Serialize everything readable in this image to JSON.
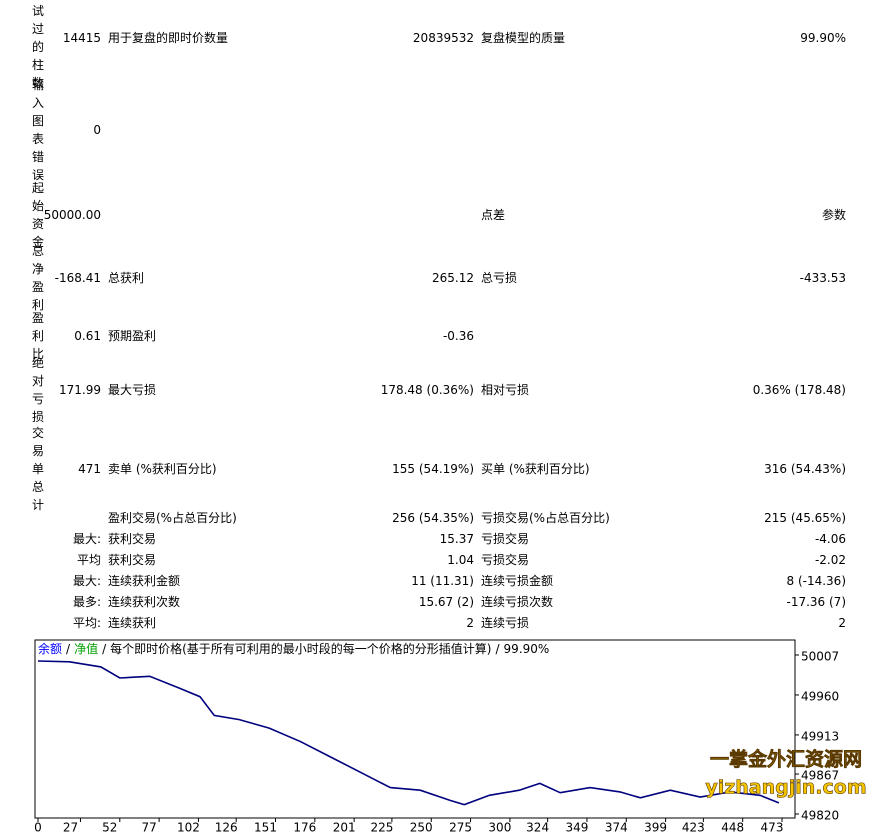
{
  "report": {
    "summary_rows": [
      {
        "label": "测试过的柱数",
        "value": "14415",
        "col2_label": "用于复盘的即时价数量",
        "col2_value": "20839532",
        "col3_label": "复盘模型的质量",
        "col3_value": "99.90%"
      },
      {
        "label": "输入图表错误",
        "value": "0"
      },
      {
        "label": "起始资金",
        "value": "50000.00",
        "col3_label": "点差",
        "col3_value": "参数"
      },
      {
        "label": "总净盈利",
        "value": "-168.41",
        "col2_label": "总获利",
        "col2_value": "265.12",
        "col3_label": "总亏损",
        "col3_value": "-433.53"
      },
      {
        "label": "盈利比",
        "value": "0.61",
        "col2_label": "预期盈利",
        "col2_value": "-0.36"
      },
      {
        "label": "绝对亏损",
        "value": "171.99",
        "col2_label": "最大亏损",
        "col2_value": "178.48 (0.36%)",
        "col3_label": "相对亏损",
        "col3_value": "0.36% (178.48)"
      },
      {
        "label": "交易单总计",
        "value": "471",
        "col2_label": "卖单 (%获利百分比)",
        "col2_value": "155 (54.19%)",
        "col3_label": "买单 (%获利百分比)",
        "col3_value": "316 (54.43%)"
      }
    ],
    "detail_rows": [
      {
        "col2_label": "盈利交易(%占总百分比)",
        "col2_value": "256 (54.35%)",
        "col3_label": "亏损交易(%占总百分比)",
        "col3_value": "215 (45.65%)"
      },
      {
        "label": "最大:",
        "col2_label": "获利交易",
        "col2_value": "15.37",
        "col3_label": "亏损交易",
        "col3_value": "-4.06"
      },
      {
        "label": "平均",
        "col2_label": "获利交易",
        "col2_value": "1.04",
        "col3_label": "亏损交易",
        "col3_value": "-2.02"
      },
      {
        "label": "最大:",
        "col2_label": "连续获利金额",
        "col2_value": "11 (11.31)",
        "col3_label": "连续亏损金额",
        "col3_value": "8 (-14.36)"
      },
      {
        "label": "最多:",
        "col2_label": "连续获利次数",
        "col2_value": "15.67 (2)",
        "col3_label": "连续亏损次数",
        "col3_value": "-17.36 (7)"
      },
      {
        "label": "平均:",
        "col2_label": "连续获利",
        "col2_value": "2",
        "col3_label": "连续亏损",
        "col3_value": "2"
      }
    ]
  },
  "chart_data": {
    "type": "line",
    "title_parts": [
      {
        "text": "余额",
        "color": "#0000ff"
      },
      {
        "text": "/"
      },
      {
        "text": "净值",
        "color": "#00a000"
      },
      {
        "text": "/"
      },
      {
        "text": "每个即时价格(基于所有可利用的最小时段的每一个价格的分形插值计算)"
      },
      {
        "text": "/"
      },
      {
        "text": "99.90%"
      }
    ],
    "x": [
      0,
      20,
      40,
      52,
      71,
      90,
      103,
      112,
      128,
      147,
      167,
      186,
      205,
      224,
      243,
      262,
      271,
      287,
      306,
      319,
      332,
      351,
      370,
      383,
      402,
      421,
      440,
      459,
      471
    ],
    "series": [
      {
        "name": "余额",
        "color": "#00007f",
        "values": [
          50000,
          49999,
          49993,
          49980,
          49982,
          49968,
          49958,
          49936,
          49931,
          49921,
          49905,
          49887,
          49869,
          49851,
          49848,
          49836,
          49831,
          49842,
          49848,
          49856,
          49845,
          49851,
          49846,
          49839,
          49848,
          49840,
          49846,
          49842,
          49833
        ]
      }
    ],
    "xlim": [
      0,
      473
    ],
    "xticks": [
      0,
      27,
      52,
      77,
      102,
      126,
      151,
      176,
      201,
      225,
      250,
      275,
      300,
      324,
      349,
      374,
      399,
      423,
      448,
      473
    ],
    "ylim": [
      49820,
      50007
    ],
    "yticks": [
      49820,
      49867,
      49913,
      49960,
      50007
    ],
    "watermark": [
      "一掌金外汇资源网",
      "yizhangjin.com"
    ],
    "watermark_color": "#f5c400"
  }
}
